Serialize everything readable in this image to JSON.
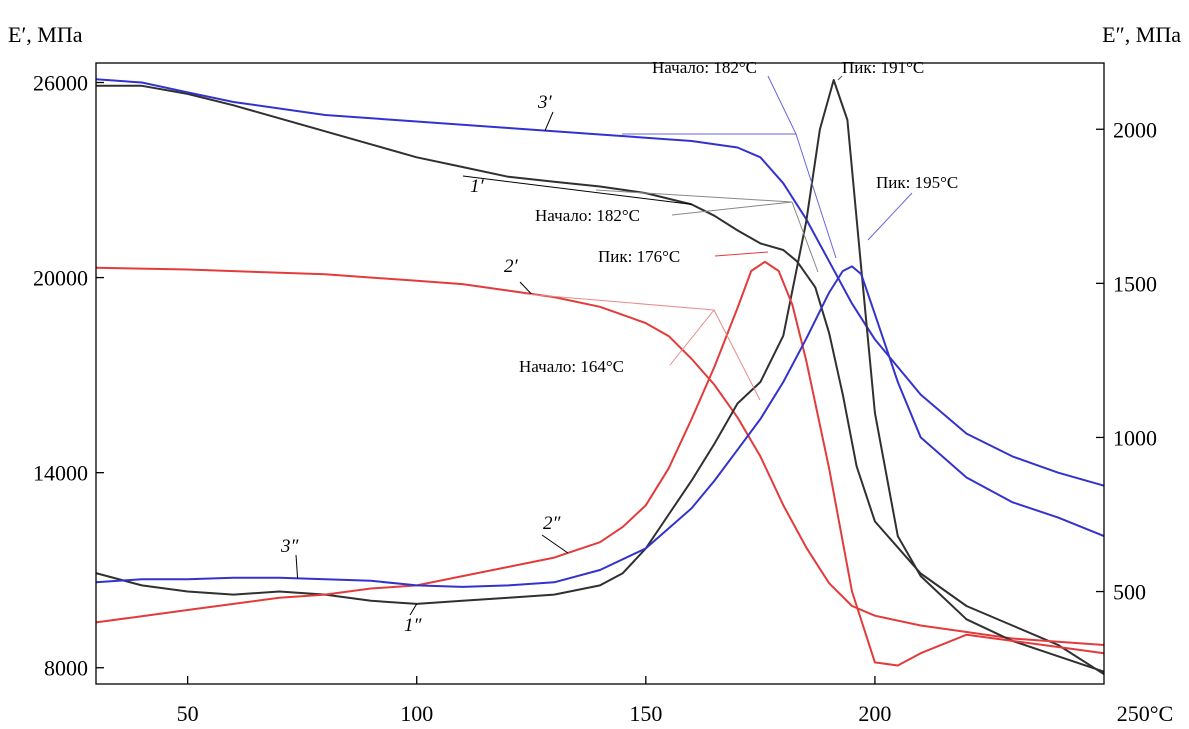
{
  "chart_data": {
    "type": "line",
    "left_axis_label": "E′, МПа",
    "right_axis_label": "E″, МПа",
    "x_unit_label": "250°C",
    "x_ticks": [
      {
        "value": 50,
        "label": "50"
      },
      {
        "value": 100,
        "label": "100"
      },
      {
        "value": 150,
        "label": "150"
      },
      {
        "value": 200,
        "label": "200"
      }
    ],
    "xlim": [
      30,
      250
    ],
    "y_left_ticks": [
      "8000",
      "14000",
      "20000",
      "26000"
    ],
    "ylim_left": [
      7500,
      26600
    ],
    "y_right_ticks": [
      "500",
      "1000",
      "1500",
      "2000"
    ],
    "ylim_right": [
      200,
      2215
    ],
    "series": [
      {
        "name": "1′",
        "axis": "left",
        "color": "#303030",
        "x": [
          30,
          40,
          50,
          60,
          70,
          80,
          90,
          100,
          110,
          120,
          130,
          140,
          150,
          160,
          165,
          170,
          175,
          180,
          183,
          187,
          190,
          193,
          196,
          200,
          210,
          220,
          230,
          240,
          250
        ],
        "y": [
          25900,
          25900,
          25650,
          25300,
          24900,
          24500,
          24100,
          23700,
          23400,
          23100,
          22950,
          22800,
          22600,
          22250,
          21900,
          21450,
          21050,
          20850,
          20500,
          19700,
          18300,
          16400,
          14200,
          12500,
          10900,
          9900,
          9300,
          8700,
          7800
        ]
      },
      {
        "name": "2′",
        "axis": "left",
        "color": "#e33b3b",
        "x": [
          30,
          50,
          80,
          100,
          110,
          120,
          130,
          140,
          150,
          155,
          160,
          165,
          170,
          175,
          180,
          185,
          190,
          195,
          200,
          210,
          220,
          230,
          240,
          250
        ],
        "y": [
          20300,
          20250,
          20100,
          19900,
          19800,
          19600,
          19400,
          19100,
          18600,
          18200,
          17500,
          16700,
          15700,
          14500,
          13000,
          11700,
          10600,
          9900,
          9600,
          9300,
          9100,
          8900,
          8800,
          8700
        ]
      },
      {
        "name": "3′",
        "axis": "left",
        "color": "#3333cc",
        "x": [
          30,
          40,
          50,
          60,
          80,
          100,
          120,
          140,
          160,
          170,
          175,
          180,
          185,
          190,
          195,
          200,
          210,
          220,
          230,
          240,
          250
        ],
        "y": [
          26100,
          26000,
          25700,
          25400,
          25000,
          24800,
          24600,
          24400,
          24200,
          24000,
          23700,
          22900,
          21800,
          20500,
          19200,
          18100,
          16400,
          15200,
          14500,
          14000,
          13600
        ]
      },
      {
        "name": "1″",
        "axis": "right",
        "color": "#303030",
        "x": [
          30,
          40,
          50,
          60,
          70,
          80,
          90,
          100,
          110,
          120,
          130,
          140,
          145,
          150,
          155,
          160,
          165,
          170,
          175,
          180,
          185,
          188,
          191,
          194,
          197,
          200,
          205,
          210,
          220,
          230,
          240,
          250
        ],
        "y": [
          560,
          520,
          500,
          490,
          500,
          490,
          470,
          460,
          470,
          480,
          490,
          520,
          560,
          640,
          750,
          860,
          980,
          1110,
          1180,
          1330,
          1700,
          2000,
          2160,
          2030,
          1550,
          1080,
          680,
          550,
          410,
          340,
          290,
          240
        ]
      },
      {
        "name": "2″",
        "axis": "right",
        "color": "#e33b3b",
        "x": [
          30,
          40,
          50,
          60,
          70,
          80,
          90,
          100,
          110,
          120,
          130,
          140,
          145,
          150,
          155,
          160,
          165,
          170,
          173,
          176,
          179,
          182,
          185,
          190,
          195,
          200,
          205,
          210,
          220,
          230,
          240,
          250
        ],
        "y": [
          400,
          420,
          440,
          460,
          480,
          490,
          510,
          520,
          550,
          580,
          610,
          660,
          710,
          780,
          900,
          1060,
          1230,
          1420,
          1540,
          1570,
          1540,
          1430,
          1250,
          900,
          500,
          270,
          260,
          300,
          360,
          340,
          320,
          300
        ]
      },
      {
        "name": "3″",
        "axis": "right",
        "color": "#3333cc",
        "x": [
          30,
          40,
          50,
          60,
          70,
          80,
          90,
          100,
          110,
          120,
          130,
          140,
          150,
          160,
          165,
          170,
          175,
          180,
          185,
          190,
          193,
          195,
          197,
          200,
          205,
          210,
          220,
          230,
          240,
          250
        ],
        "y": [
          530,
          540,
          540,
          545,
          545,
          540,
          535,
          520,
          515,
          520,
          530,
          570,
          640,
          770,
          860,
          960,
          1060,
          1180,
          1320,
          1470,
          1540,
          1555,
          1530,
          1400,
          1180,
          1000,
          870,
          790,
          740,
          680
        ]
      }
    ],
    "annotations": [
      {
        "text": "Начало: 182°C",
        "color": "#6666dd"
      },
      {
        "text": "Пик: 191°C",
        "color": "#555555"
      },
      {
        "text": "Начало: 182°C",
        "color": "#888888"
      },
      {
        "text": "Пик: 195°C",
        "color": "#6666dd"
      },
      {
        "text": "Пик: 176°C",
        "color": "#e33b3b"
      },
      {
        "text": "Начало: 164°C",
        "color": "#e88a8a"
      }
    ]
  }
}
